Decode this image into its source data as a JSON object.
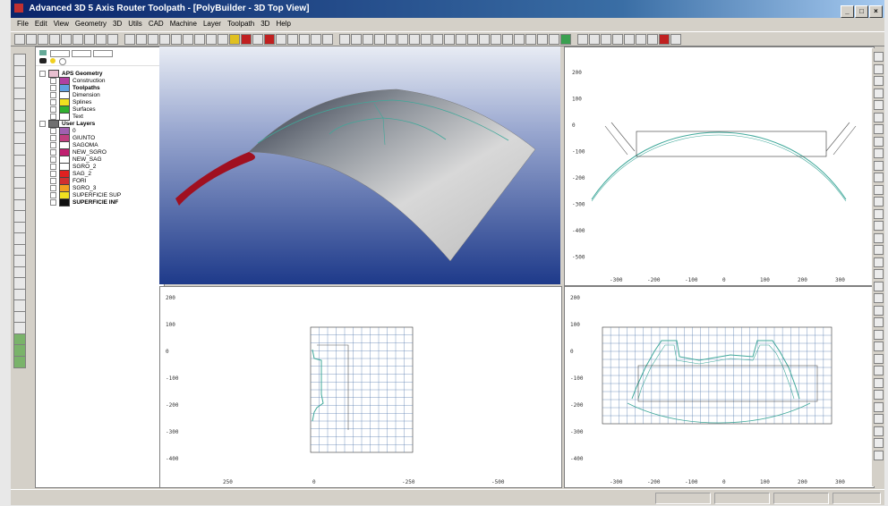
{
  "window": {
    "title": "Advanced 3D 5 Axis Router Toolpath - [PolyBuilder - 3D Top View]"
  },
  "menu": [
    "File",
    "Edit",
    "View",
    "Geometry",
    "3D",
    "Utils",
    "CAD",
    "Machine",
    "Layer",
    "Toolpath",
    "3D",
    "Help"
  ],
  "tree": {
    "items": [
      {
        "label": "APS Geometry",
        "color": "#e8c0d0",
        "bold": true,
        "indent": 0
      },
      {
        "label": "Construction",
        "color": "#b040a0",
        "bold": false,
        "indent": 1
      },
      {
        "label": "Toolpaths",
        "color": "#60a0e0",
        "bold": true,
        "indent": 1
      },
      {
        "label": "Dimension",
        "color": "#ffffff",
        "bold": false,
        "indent": 1
      },
      {
        "label": "Splines",
        "color": "#f0e020",
        "bold": false,
        "indent": 1
      },
      {
        "label": "Surfaces",
        "color": "#30b030",
        "bold": false,
        "indent": 1
      },
      {
        "label": "Text",
        "color": "#ffffff",
        "bold": false,
        "indent": 1
      },
      {
        "label": "User Layers",
        "color": "#707070",
        "bold": true,
        "indent": 0
      },
      {
        "label": "0",
        "color": "#a060b0",
        "bold": false,
        "indent": 1
      },
      {
        "label": "GIUNTO",
        "color": "#c04080",
        "bold": false,
        "indent": 1
      },
      {
        "label": "SAGOMA",
        "color": "#ffffff",
        "bold": false,
        "indent": 1
      },
      {
        "label": "NEW_SGRO",
        "color": "#c02070",
        "bold": false,
        "indent": 1
      },
      {
        "label": "NEW_SAG",
        "color": "#ffffff",
        "bold": false,
        "indent": 1
      },
      {
        "label": "SGRO_2",
        "color": "#ffffff",
        "bold": false,
        "indent": 1
      },
      {
        "label": "SAG_2",
        "color": "#e02020",
        "bold": false,
        "indent": 1
      },
      {
        "label": "FORI",
        "color": "#d03030",
        "bold": false,
        "indent": 1
      },
      {
        "label": "SGRO_3",
        "color": "#f0a020",
        "bold": false,
        "indent": 1
      },
      {
        "label": "SUPERFICIE SUP",
        "color": "#f0e020",
        "bold": false,
        "indent": 1
      },
      {
        "label": "SUPERFICIE INF",
        "color": "#101010",
        "bold": true,
        "indent": 1
      }
    ]
  },
  "viewports": {
    "top_right": {
      "y_ticks": [
        "200",
        "100",
        "0",
        "-100",
        "-200",
        "-300",
        "-400",
        "-500"
      ],
      "x_ticks": [
        "-300",
        "-200",
        "-100",
        "0",
        "100",
        "200",
        "300"
      ]
    },
    "bottom_left": {
      "y_ticks": [
        "200",
        "100",
        "0",
        "-100",
        "-200",
        "-300",
        "-400"
      ],
      "x_ticks": [
        "250",
        "0",
        "-250",
        "-500"
      ]
    },
    "bottom_right": {
      "y_ticks": [
        "200",
        "100",
        "0",
        "-100",
        "-200",
        "-300",
        "-400"
      ],
      "x_ticks": [
        "-300",
        "-200",
        "-100",
        "0",
        "100",
        "200",
        "300"
      ]
    }
  },
  "colors": {
    "surface_gray": "#c8c8c8",
    "surface_red": "#a01020",
    "toolpath": "#3fa89a",
    "viewport_bg_top": "#c8d0e8",
    "viewport_bg_bottom": "#203a8a"
  },
  "icons": [
    "close-icon",
    "minimize-icon",
    "maximize-icon",
    "layer-icon",
    "binoculars-icon"
  ]
}
